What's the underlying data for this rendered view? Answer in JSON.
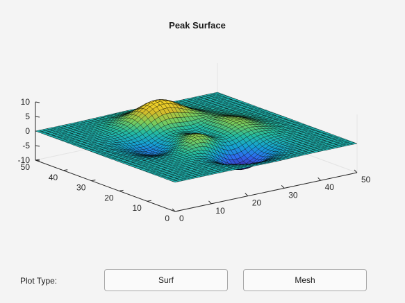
{
  "plot": {
    "title": "Peak Surface",
    "z_ticks": [
      "10",
      "5",
      "0",
      "-5",
      "-10"
    ],
    "y_ticks": [
      "50",
      "40",
      "30",
      "20",
      "10",
      "0"
    ],
    "x_ticks": [
      "0",
      "10",
      "20",
      "30",
      "40",
      "50"
    ],
    "colormap": [
      "#3e26a8",
      "#2e6af0",
      "#15a1d4",
      "#25bca0",
      "#7fcc58",
      "#d4bc2a",
      "#fad928"
    ],
    "edge_color": "#000000"
  },
  "controls": {
    "plot_type_label": "Plot Type:",
    "surf_label": "Surf",
    "mesh_label": "Mesh"
  },
  "chart_data": {
    "type": "surface",
    "title": "Peak Surface",
    "function": "peaks",
    "grid": [
      49,
      49
    ],
    "xlim": [
      0,
      50
    ],
    "ylim": [
      0,
      50
    ],
    "zlim": [
      -10,
      10
    ],
    "zticks": [
      10,
      5,
      0,
      -5,
      -10
    ],
    "yticks": [
      50,
      40,
      30,
      20,
      10,
      0
    ],
    "xticks": [
      0,
      10,
      20,
      30,
      40,
      50
    ]
  }
}
